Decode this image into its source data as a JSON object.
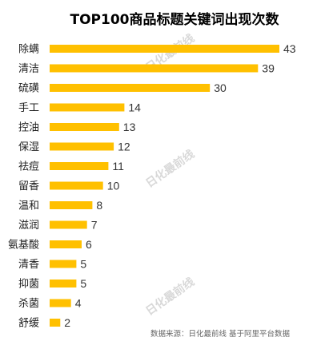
{
  "chart_data": {
    "type": "bar",
    "orientation": "horizontal",
    "title": "TOP100商品标题关键词出现次数",
    "categories": [
      "除螨",
      "清洁",
      "硫磺",
      "手工",
      "控油",
      "保湿",
      "祛痘",
      "留香",
      "温和",
      "滋润",
      "氨基酸",
      "清香",
      "抑菌",
      "杀菌",
      "舒缓"
    ],
    "values": [
      43,
      39,
      30,
      14,
      13,
      12,
      11,
      10,
      8,
      7,
      6,
      5,
      5,
      4,
      2
    ],
    "xlim": [
      0,
      43
    ],
    "grid": false,
    "legend": "none",
    "bar_color": "#FFC000",
    "source": "数据来源：日化最前线 基于阿里平台数据",
    "watermark": "日化最前线"
  }
}
